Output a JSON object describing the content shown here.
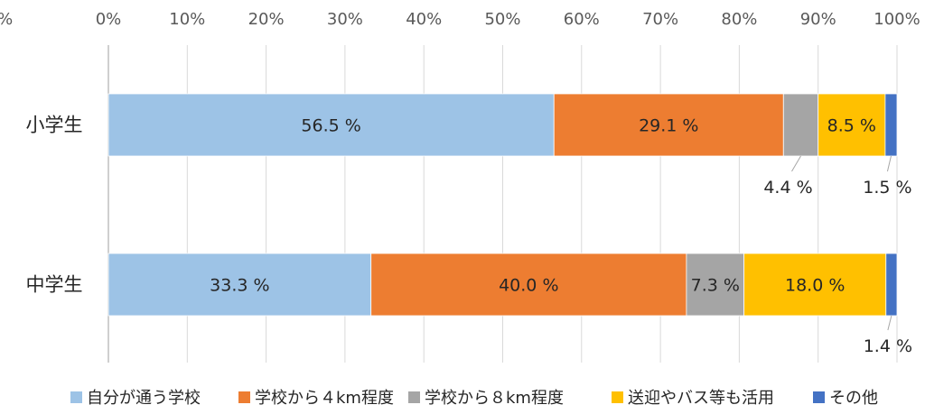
{
  "chart_data": {
    "type": "bar",
    "orientation": "horizontal",
    "stacked": "percent",
    "xlim": [
      0,
      100
    ],
    "x_ticks": [
      "0%",
      "10%",
      "20%",
      "30%",
      "40%",
      "50%",
      "60%",
      "70%",
      "80%",
      "90%",
      "100%"
    ],
    "clipped_tick_left": "0%",
    "categories": [
      "小学生",
      "中学生"
    ],
    "series": [
      {
        "name": "自分が通う学校",
        "color": "#9DC3E6",
        "values": [
          56.5,
          33.3
        ],
        "labels": [
          "56.5 %",
          "33.3 %"
        ]
      },
      {
        "name": "学校から４km程度",
        "color": "#ED7D31",
        "values": [
          29.1,
          40.0
        ],
        "labels": [
          "29.1 %",
          "40.0 %"
        ]
      },
      {
        "name": "学校から８km程度",
        "color": "#A5A5A5",
        "values": [
          4.4,
          7.3
        ],
        "labels": [
          "4.4 %",
          "7.3 %"
        ]
      },
      {
        "name": "送迎やバス等も活用",
        "color": "#FFC000",
        "values": [
          8.5,
          18.0
        ],
        "labels": [
          "8.5 %",
          "18.0 %"
        ]
      },
      {
        "name": "その他",
        "color": "#4472C4",
        "values": [
          1.5,
          1.4
        ],
        "labels": [
          "1.5 %",
          "1.4 %"
        ]
      }
    ],
    "legend_position": "bottom",
    "grid": true
  }
}
